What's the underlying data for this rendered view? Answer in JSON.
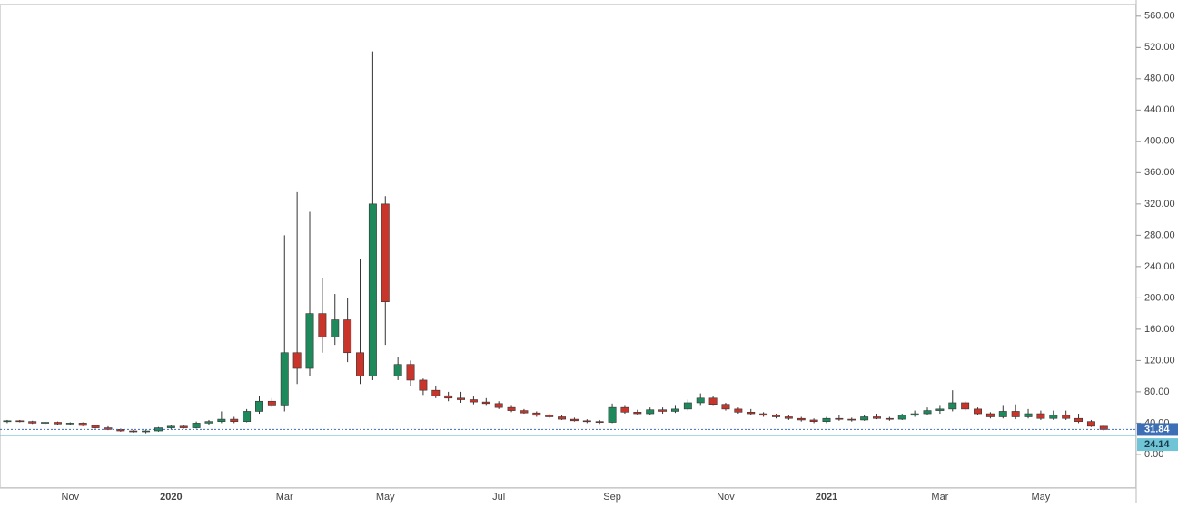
{
  "chart_data": {
    "type": "candlestick",
    "categories": [
      null,
      null,
      null,
      null,
      null,
      "Nov",
      null,
      null,
      null,
      null,
      null,
      null,
      null,
      "2020",
      null,
      null,
      null,
      null,
      null,
      null,
      null,
      null,
      "Mar",
      null,
      null,
      null,
      null,
      null,
      null,
      null,
      "May",
      null,
      null,
      null,
      null,
      null,
      null,
      null,
      null,
      "Jul",
      null,
      null,
      null,
      null,
      null,
      null,
      null,
      null,
      "Sep",
      null,
      null,
      null,
      null,
      null,
      null,
      null,
      null,
      "Nov",
      null,
      null,
      null,
      null,
      null,
      null,
      null,
      "2021",
      null,
      null,
      null,
      null,
      null,
      null,
      null,
      null,
      "Mar",
      null,
      null,
      null,
      null,
      null,
      null,
      null,
      "May",
      null,
      null,
      null,
      null,
      null
    ],
    "open": [
      42,
      43,
      42,
      40,
      41,
      39,
      40,
      37,
      34,
      32,
      30,
      29,
      30,
      34,
      36,
      34,
      40,
      42,
      45,
      42,
      55,
      68,
      62,
      130,
      110,
      180,
      150,
      172,
      130,
      100,
      320,
      100,
      115,
      95,
      82,
      75,
      72,
      70,
      67,
      65,
      60,
      56,
      53,
      50,
      48,
      45,
      43,
      42,
      41,
      60,
      54,
      52,
      57,
      55,
      58,
      66,
      72,
      64,
      58,
      54,
      52,
      50,
      48,
      46,
      44,
      42,
      46,
      45,
      44,
      48,
      46,
      45,
      50,
      52,
      56,
      58,
      66,
      58,
      52,
      48,
      55,
      48,
      52,
      46,
      50,
      46,
      42,
      36
    ],
    "high": [
      44,
      44,
      43,
      42,
      42,
      41,
      41,
      38,
      36,
      33,
      31,
      31,
      35,
      37,
      38,
      42,
      44,
      55,
      48,
      58,
      75,
      72,
      280,
      335,
      310,
      225,
      205,
      200,
      250,
      515,
      330,
      125,
      120,
      97,
      88,
      80,
      80,
      74,
      72,
      68,
      62,
      58,
      55,
      52,
      50,
      47,
      45,
      44,
      65,
      62,
      57,
      60,
      60,
      62,
      70,
      78,
      74,
      66,
      60,
      58,
      54,
      52,
      50,
      48,
      46,
      48,
      50,
      47,
      50,
      52,
      48,
      52,
      56,
      60,
      62,
      82,
      68,
      60,
      54,
      62,
      64,
      58,
      56,
      56,
      56,
      52,
      44,
      38
    ],
    "low": [
      40,
      41,
      39,
      38,
      38,
      37,
      36,
      33,
      31,
      29,
      28,
      27,
      29,
      32,
      33,
      33,
      38,
      40,
      40,
      41,
      52,
      60,
      55,
      90,
      100,
      130,
      140,
      118,
      90,
      95,
      140,
      95,
      88,
      76,
      72,
      68,
      66,
      64,
      62,
      58,
      54,
      52,
      48,
      46,
      44,
      42,
      40,
      39,
      40,
      52,
      50,
      50,
      52,
      53,
      56,
      62,
      62,
      56,
      52,
      50,
      48,
      46,
      44,
      42,
      40,
      40,
      43,
      42,
      43,
      45,
      43,
      44,
      48,
      50,
      52,
      55,
      56,
      50,
      46,
      46,
      45,
      46,
      44,
      44,
      44,
      40,
      35,
      30
    ],
    "close": [
      43,
      42,
      40,
      41,
      39,
      40,
      37,
      34,
      32,
      30,
      29,
      30,
      34,
      36,
      34,
      40,
      42,
      45,
      42,
      55,
      68,
      62,
      130,
      110,
      180,
      150,
      172,
      130,
      100,
      320,
      195,
      115,
      95,
      82,
      75,
      72,
      70,
      67,
      65,
      60,
      56,
      53,
      50,
      48,
      45,
      43,
      42,
      41,
      60,
      54,
      52,
      57,
      55,
      58,
      66,
      72,
      64,
      58,
      54,
      52,
      50,
      48,
      46,
      44,
      42,
      46,
      45,
      44,
      48,
      46,
      45,
      50,
      52,
      56,
      58,
      66,
      58,
      52,
      48,
      55,
      48,
      52,
      46,
      50,
      46,
      42,
      36,
      31.84
    ],
    "up_color": "#1e8a5c",
    "down_color": "#c9352b",
    "wick_color": "#333333",
    "ylim": [
      -43,
      576
    ],
    "yticks": [
      {
        "value": 0,
        "label": "0.00"
      },
      {
        "value": 40,
        "label": "40.00"
      },
      {
        "value": 80,
        "label": "80.00"
      },
      {
        "value": 120,
        "label": "120.00"
      },
      {
        "value": 160,
        "label": "160.00"
      },
      {
        "value": 200,
        "label": "200.00"
      },
      {
        "value": 240,
        "label": "240.00"
      },
      {
        "value": 280,
        "label": "280.00"
      },
      {
        "value": 320,
        "label": "320.00"
      },
      {
        "value": 360,
        "label": "360.00"
      },
      {
        "value": 400,
        "label": "400.00"
      },
      {
        "value": 440,
        "label": "440.00"
      },
      {
        "value": 480,
        "label": "480.00"
      },
      {
        "value": 520,
        "label": "520.00"
      },
      {
        "value": 560,
        "label": "560.00"
      }
    ],
    "price_lines": [
      {
        "value": 31.84,
        "color": "#3d6fb6",
        "style": "dotted"
      },
      {
        "value": 24.14,
        "color": "#6fc4d6",
        "style": "solid"
      }
    ]
  }
}
